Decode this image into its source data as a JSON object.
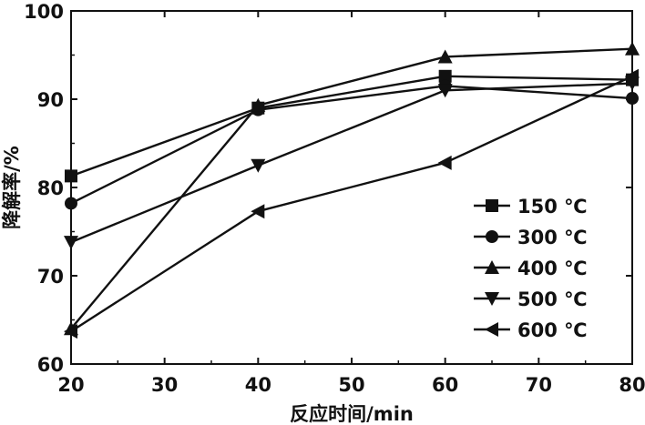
{
  "chart_data": {
    "type": "line",
    "title": "",
    "xlabel": "反应时间/min",
    "ylabel": "降解率/%",
    "xlim": [
      20,
      80
    ],
    "ylim": [
      60,
      100
    ],
    "xticks": [
      20,
      30,
      40,
      50,
      60,
      70,
      80
    ],
    "yticks": [
      60,
      70,
      80,
      90,
      100
    ],
    "x": [
      20,
      40,
      60,
      80
    ],
    "grid": false,
    "legend_position": "bottom-right",
    "series": [
      {
        "name": "150 ℃",
        "marker": "square",
        "values": [
          81.3,
          89.0,
          92.6,
          92.2
        ]
      },
      {
        "name": "300 ℃",
        "marker": "circle",
        "values": [
          78.2,
          88.8,
          91.5,
          90.1
        ]
      },
      {
        "name": "400 ℃",
        "marker": "triangle-up",
        "values": [
          64.0,
          89.3,
          94.8,
          95.7
        ]
      },
      {
        "name": "500 ℃",
        "marker": "triangle-down",
        "values": [
          73.8,
          82.5,
          91.0,
          91.8
        ]
      },
      {
        "name": "600 ℃",
        "marker": "triangle-left",
        "values": [
          63.7,
          77.3,
          82.8,
          92.6
        ]
      }
    ]
  }
}
